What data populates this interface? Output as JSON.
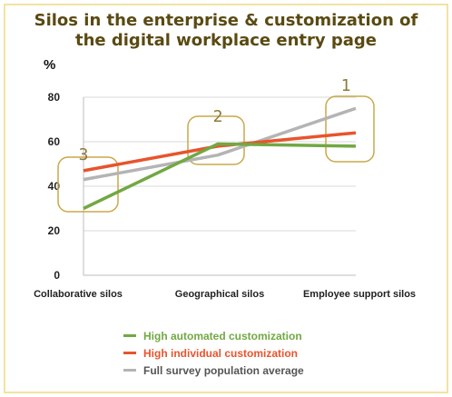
{
  "chart_data": {
    "type": "line",
    "title": "Silos in the enterprise & customization of the digital workplace entry page",
    "ylabel": "%",
    "ylim": [
      0,
      80
    ],
    "yticks": [
      "0",
      "20",
      "40",
      "60",
      "80"
    ],
    "categories": [
      "Collaborative silos",
      "Geographical silos",
      "Employee support silos"
    ],
    "series": [
      {
        "name": "High automated customization",
        "values": [
          30,
          59,
          58
        ],
        "color": "#72a843"
      },
      {
        "name": "High individual customization",
        "values": [
          47,
          58,
          64
        ],
        "color": "#e8542d"
      },
      {
        "name": "Full survey population average",
        "values": [
          43,
          54,
          75
        ],
        "color": "#b4b4b4"
      }
    ],
    "annotations": [
      {
        "label": "3",
        "category": 0
      },
      {
        "label": "2",
        "category": 1
      },
      {
        "label": "1",
        "category": 2
      }
    ],
    "grid": true,
    "legend": "bottom"
  }
}
